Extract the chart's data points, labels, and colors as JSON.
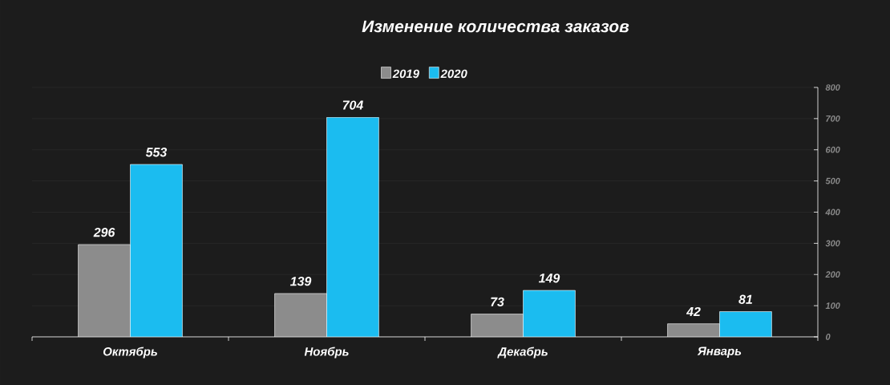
{
  "chart_data": {
    "type": "bar",
    "title": "Изменение количества заказов",
    "categories": [
      "Октябрь",
      "Ноябрь",
      "Декабрь",
      "Январь"
    ],
    "series": [
      {
        "name": "2019",
        "color": "#8c8c8c",
        "values": [
          296,
          139,
          73,
          42
        ]
      },
      {
        "name": "2020",
        "color": "#1bbcf0",
        "values": [
          553,
          704,
          149,
          81
        ]
      }
    ],
    "ylim": [
      0,
      800
    ],
    "yticks": [
      0,
      100,
      200,
      300,
      400,
      500,
      600,
      700,
      800
    ],
    "grid": "y",
    "legend": "top",
    "data_labels": true
  }
}
